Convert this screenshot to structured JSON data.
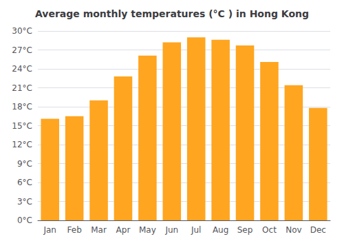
{
  "chart_data": {
    "type": "bar",
    "title": "Average monthly temperatures (°C ) in Hong Kong",
    "categories": [
      "Jan",
      "Feb",
      "Mar",
      "Apr",
      "May",
      "Jun",
      "Jul",
      "Aug",
      "Sep",
      "Oct",
      "Nov",
      "Dec"
    ],
    "values": [
      16.1,
      16.5,
      19.0,
      22.8,
      26.1,
      28.2,
      29.0,
      28.6,
      27.7,
      25.1,
      21.4,
      17.8
    ],
    "color": "#FFA520",
    "ylim": [
      0,
      30
    ],
    "yticks": [
      {
        "value": 0,
        "label": "0°C"
      },
      {
        "value": 3,
        "label": "3°C"
      },
      {
        "value": 6,
        "label": "6°C"
      },
      {
        "value": 9,
        "label": "9°C"
      },
      {
        "value": 12,
        "label": "12°C"
      },
      {
        "value": 15,
        "label": "15°C"
      },
      {
        "value": 18,
        "label": "18°C"
      },
      {
        "value": 21,
        "label": "21°C"
      },
      {
        "value": 24,
        "label": "24°C"
      },
      {
        "value": 27,
        "label": "27°C"
      },
      {
        "value": 30,
        "label": "30°C"
      }
    ],
    "grid": true
  }
}
